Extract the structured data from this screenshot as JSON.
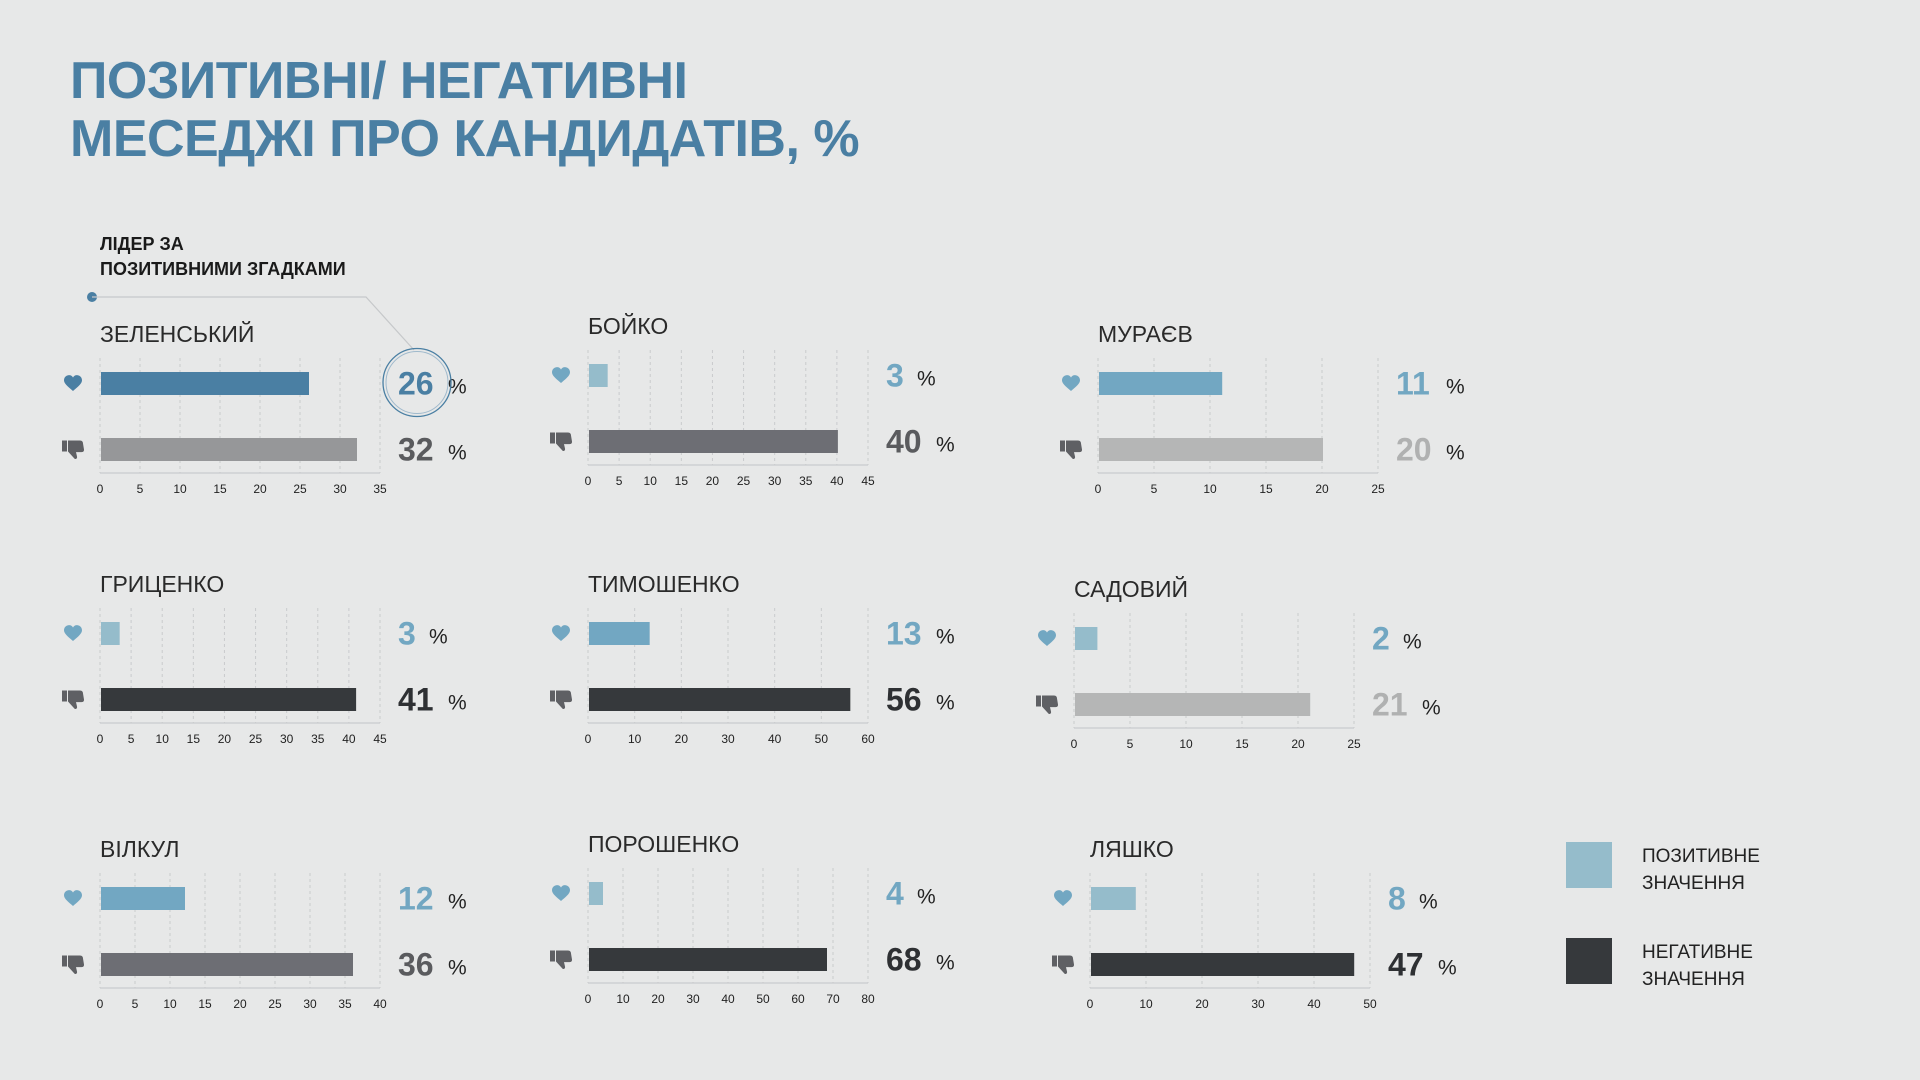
{
  "title": {
    "line1": "ПОЗИТИВНІ/ НЕГАТИВНІ",
    "line2": "МЕСЕДЖІ ПРО КАНДИДАТІВ, %"
  },
  "leader_note": {
    "line1": "ЛІДЕР ЗА",
    "line2": "ПОЗИТИВНИМИ ЗГАДКАМИ"
  },
  "legend": {
    "positive": {
      "line1": "ПОЗИТИВНЕ",
      "line2": "ЗНАЧЕННЯ",
      "color": "#95bccb"
    },
    "negative": {
      "line1": "НЕГАТИВНЕ",
      "line2": "ЗНАЧЕННЯ",
      "color": "#36393c"
    }
  },
  "icons": {
    "positive": "heart-icon",
    "negative": "thumbs-down-icon"
  },
  "chart_data": [
    {
      "type": "bar",
      "name": "ЗЕЛЕНСЬКИЙ",
      "positive": 26,
      "negative": 32,
      "xlim": [
        0,
        35
      ],
      "ticks": [
        0,
        5,
        10,
        15,
        20,
        25,
        30,
        35
      ],
      "unit": "%",
      "colors": {
        "positive": "#4a7fa3",
        "negative": "#969799",
        "positive_label": "#4a7fa3",
        "negative_label": "#5a5b5e"
      },
      "highlight": true
    },
    {
      "type": "bar",
      "name": "БОЙКО",
      "positive": 3,
      "negative": 40,
      "xlim": [
        0,
        45
      ],
      "ticks": [
        0,
        5,
        10,
        15,
        20,
        25,
        30,
        35,
        40,
        45
      ],
      "unit": "%",
      "colors": {
        "positive": "#95bccb",
        "negative": "#6d6e74",
        "positive_label": "#72a7c2",
        "negative_label": "#5a5b5e"
      }
    },
    {
      "type": "bar",
      "name": "МУРАЄВ",
      "positive": 11,
      "negative": 20,
      "xlim": [
        0,
        25
      ],
      "ticks": [
        0,
        5,
        10,
        15,
        20,
        25
      ],
      "unit": "%",
      "colors": {
        "positive": "#72a7c2",
        "negative": "#b5b6b6",
        "positive_label": "#72a7c2",
        "negative_label": "#b0b1b1"
      }
    },
    {
      "type": "bar",
      "name": "ГРИЦЕНКО",
      "positive": 3,
      "negative": 41,
      "xlim": [
        0,
        45
      ],
      "ticks": [
        0,
        5,
        10,
        15,
        20,
        25,
        30,
        35,
        40,
        45
      ],
      "unit": "%",
      "colors": {
        "positive": "#95bccb",
        "negative": "#36393c",
        "positive_label": "#72a7c2",
        "negative_label": "#2e3033"
      }
    },
    {
      "type": "bar",
      "name": "ТИМОШЕНКО",
      "positive": 13,
      "negative": 56,
      "xlim": [
        0,
        60
      ],
      "ticks": [
        0,
        10,
        20,
        30,
        40,
        50,
        60
      ],
      "unit": "%",
      "colors": {
        "positive": "#72a7c2",
        "negative": "#36393c",
        "positive_label": "#72a7c2",
        "negative_label": "#2e3033"
      }
    },
    {
      "type": "bar",
      "name": "САДОВИЙ",
      "positive": 2,
      "negative": 21,
      "xlim": [
        0,
        25
      ],
      "ticks": [
        0,
        5,
        10,
        15,
        20,
        25
      ],
      "unit": "%",
      "colors": {
        "positive": "#95bccb",
        "negative": "#b5b6b6",
        "positive_label": "#72a7c2",
        "negative_label": "#b0b1b1"
      }
    },
    {
      "type": "bar",
      "name": "ВІЛКУЛ",
      "positive": 12,
      "negative": 36,
      "xlim": [
        0,
        40
      ],
      "ticks": [
        0,
        5,
        10,
        15,
        20,
        25,
        30,
        35,
        40
      ],
      "unit": "%",
      "colors": {
        "positive": "#72a7c2",
        "negative": "#6d6e74",
        "positive_label": "#72a7c2",
        "negative_label": "#5a5b5e"
      }
    },
    {
      "type": "bar",
      "name": "ПОРОШЕНКО",
      "positive": 4,
      "negative": 68,
      "xlim": [
        0,
        80
      ],
      "ticks": [
        0,
        10,
        20,
        30,
        40,
        50,
        60,
        70,
        80
      ],
      "unit": "%",
      "colors": {
        "positive": "#95bccb",
        "negative": "#36393c",
        "positive_label": "#72a7c2",
        "negative_label": "#2e3033"
      }
    },
    {
      "type": "bar",
      "name": "ЛЯШКО",
      "positive": 8,
      "negative": 47,
      "xlim": [
        0,
        50
      ],
      "ticks": [
        0,
        10,
        20,
        30,
        40,
        50
      ],
      "unit": "%",
      "colors": {
        "positive": "#95bccb",
        "negative": "#36393c",
        "positive_label": "#72a7c2",
        "negative_label": "#2e3033"
      }
    }
  ]
}
